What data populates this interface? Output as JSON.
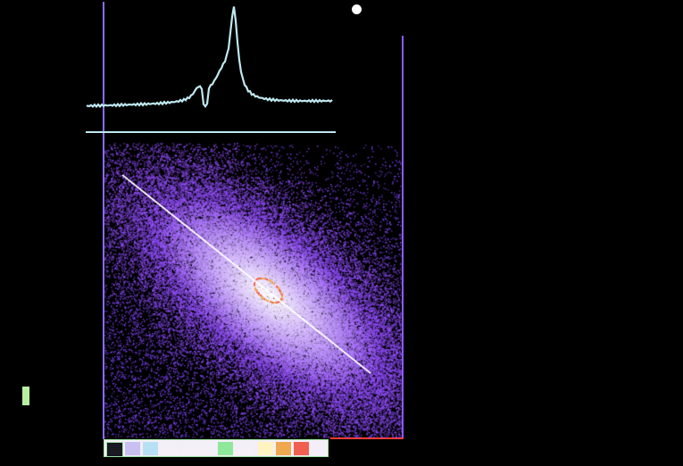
{
  "chart_data": {
    "type": "scatter",
    "title": "",
    "xlabel": "",
    "ylabel": "",
    "grid": false,
    "style": "density scatter with diagonal reference line and marginal spectrum trace",
    "colors": {
      "background": "#000000",
      "frame": "#8a6cff",
      "points_low": "#7a3cff",
      "points_high": "#ffffff",
      "spectrum": "#bfe8f0",
      "frame_bottom_accent": "#ff3a2a"
    },
    "colorbar": [
      "#1a1a22",
      "#c8c0f0",
      "#b8e0f4",
      "#f4f0f8",
      "#f4f0f8",
      "#8ee89a",
      "#f4f0f8",
      "#fff4c0",
      "#f0a850",
      "#f06050"
    ]
  }
}
